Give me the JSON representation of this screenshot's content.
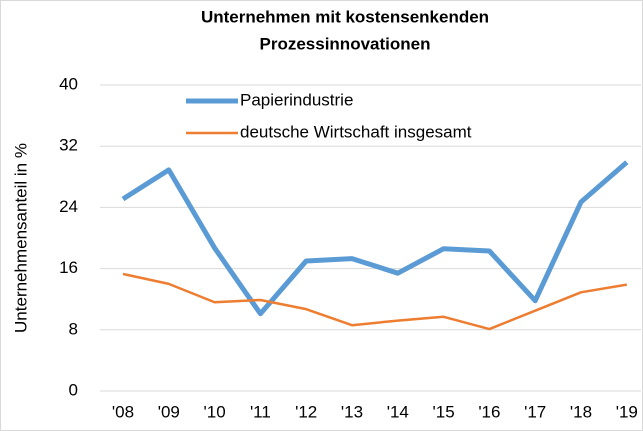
{
  "chart_data": {
    "type": "line",
    "title": [
      "Unternehmen mit kostensenkenden",
      "Prozessinnovationen"
    ],
    "y_label": "Unternehmensanteil in %",
    "categories": [
      "'08",
      "'09",
      "'10",
      "'11",
      "'12",
      "'13",
      "'14",
      "'15",
      "'16",
      "'17",
      "'18",
      "'19"
    ],
    "series": [
      {
        "name": "Papierindustrie",
        "color": "#5b9bd5",
        "width": 5,
        "values": [
          25.1,
          28.9,
          18.7,
          10.1,
          17.0,
          17.3,
          15.4,
          18.6,
          18.3,
          11.8,
          24.7,
          29.9
        ]
      },
      {
        "name": "deutsche Wirtschaft insgesamt",
        "color": "#ed7d31",
        "width": 2.5,
        "values": [
          15.3,
          14.0,
          11.6,
          11.9,
          10.7,
          8.6,
          9.2,
          9.7,
          8.1,
          10.5,
          12.9,
          13.9
        ]
      }
    ],
    "ylim": [
      0,
      40
    ],
    "yticks": [
      0,
      8,
      16,
      24,
      32,
      40
    ],
    "grid": true,
    "legend": "upper left"
  }
}
